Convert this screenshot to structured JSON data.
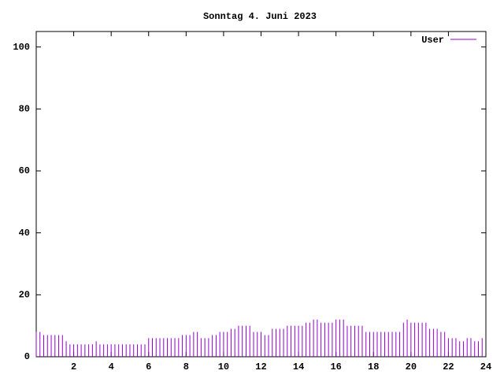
{
  "chart_data": {
    "type": "impulse",
    "title": "Sonntag 4. Juni 2023",
    "x": [
      0,
      0.2,
      0.4,
      0.6,
      0.8,
      1,
      1.2,
      1.4,
      1.6,
      1.8,
      2,
      2.2,
      2.4,
      2.6,
      2.8,
      3,
      3.2,
      3.4,
      3.6,
      3.8,
      4,
      4.2,
      4.4,
      4.6,
      4.8,
      5,
      5.2,
      5.4,
      5.6,
      5.8,
      6,
      6.2,
      6.4,
      6.6,
      6.8,
      7,
      7.2,
      7.4,
      7.6,
      7.8,
      8,
      8.2,
      8.4,
      8.6,
      8.8,
      9,
      9.2,
      9.4,
      9.6,
      9.8,
      10,
      10.2,
      10.4,
      10.6,
      10.8,
      11,
      11.2,
      11.4,
      11.6,
      11.8,
      12,
      12.2,
      12.4,
      12.6,
      12.8,
      13,
      13.2,
      13.4,
      13.6,
      13.8,
      14,
      14.2,
      14.4,
      14.6,
      14.8,
      15,
      15.2,
      15.4,
      15.6,
      15.8,
      16,
      16.2,
      16.4,
      16.6,
      16.8,
      17,
      17.2,
      17.4,
      17.6,
      17.8,
      18,
      18.2,
      18.4,
      18.6,
      18.8,
      19,
      19.2,
      19.4,
      19.6,
      19.8,
      20,
      20.2,
      20.4,
      20.6,
      20.8,
      21,
      21.2,
      21.4,
      21.6,
      21.8,
      22,
      22.2,
      22.4,
      22.6,
      22.8,
      23,
      23.2,
      23.4,
      23.6,
      23.8
    ],
    "series": [
      {
        "name": "User",
        "color": "#9400d3",
        "values": [
          8,
          8,
          7,
          7,
          7,
          7,
          7,
          7,
          5,
          4,
          4,
          4,
          4,
          4,
          4,
          4,
          5,
          4,
          4,
          4,
          4,
          4,
          4,
          4,
          4,
          4,
          4,
          4,
          4,
          4,
          6,
          6,
          6,
          6,
          6,
          6,
          6,
          6,
          6,
          7,
          7,
          7,
          8,
          8,
          6,
          6,
          6,
          7,
          7,
          8,
          8,
          8,
          9,
          9,
          10,
          10,
          10,
          10,
          8,
          8,
          8,
          7,
          7,
          9,
          9,
          9,
          9,
          10,
          10,
          10,
          10,
          10,
          11,
          11,
          12,
          12,
          11,
          11,
          11,
          11,
          12,
          12,
          12,
          10,
          10,
          10,
          10,
          10,
          8,
          8,
          8,
          8,
          8,
          8,
          8,
          8,
          8,
          8,
          11,
          12,
          11,
          11,
          11,
          11,
          11,
          9,
          9,
          9,
          8,
          8,
          6,
          6,
          6,
          5,
          5,
          6,
          6,
          5,
          5,
          6
        ]
      }
    ],
    "xlim": [
      0,
      24
    ],
    "xticks": [
      2,
      4,
      6,
      8,
      10,
      12,
      14,
      16,
      18,
      20,
      22,
      24
    ],
    "ylim": [
      0,
      105
    ],
    "yticks": [
      0,
      20,
      40,
      60,
      80,
      100
    ]
  }
}
